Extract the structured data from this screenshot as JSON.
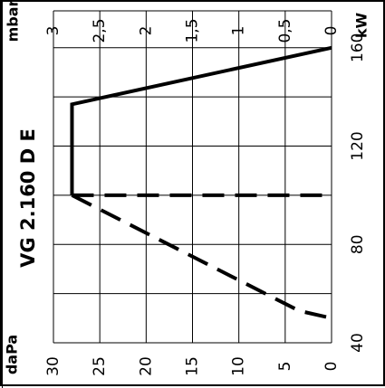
{
  "chart_data": {
    "type": "line",
    "title": "VG 2.160 D E",
    "x_axis": {
      "unit": "kW",
      "ticks": [
        40,
        80,
        120,
        160
      ],
      "range": [
        40,
        175
      ],
      "gridlines": [
        40,
        60,
        80,
        100,
        120,
        140,
        160,
        175
      ]
    },
    "y_axis_primary": {
      "unit": "daPa",
      "ticks": [
        "30",
        "25",
        "20",
        "15",
        "10",
        "5",
        "0"
      ],
      "tick_values": [
        30,
        25,
        20,
        15,
        10,
        5,
        0
      ],
      "range": [
        0,
        30
      ]
    },
    "y_axis_secondary": {
      "unit": "mbar",
      "ticks": [
        "3",
        "2,5",
        "2",
        "1,5",
        "1",
        "0,5",
        "0"
      ],
      "tick_values": [
        3,
        2.5,
        2,
        1.5,
        1,
        0.5,
        0
      ],
      "range": [
        0,
        3
      ]
    },
    "grid": true,
    "series": [
      {
        "style": "solid",
        "color": "#000000",
        "points": [
          [
            160,
            0
          ],
          [
            137,
            28
          ],
          [
            100,
            28
          ]
        ]
      },
      {
        "style": "dashed",
        "color": "#000000",
        "points": [
          [
            100,
            28
          ],
          [
            100,
            0
          ]
        ]
      },
      {
        "style": "dashed",
        "color": "#000000",
        "points": [
          [
            100,
            28
          ],
          [
            53,
            3.5
          ],
          [
            50,
            0
          ]
        ]
      }
    ]
  }
}
